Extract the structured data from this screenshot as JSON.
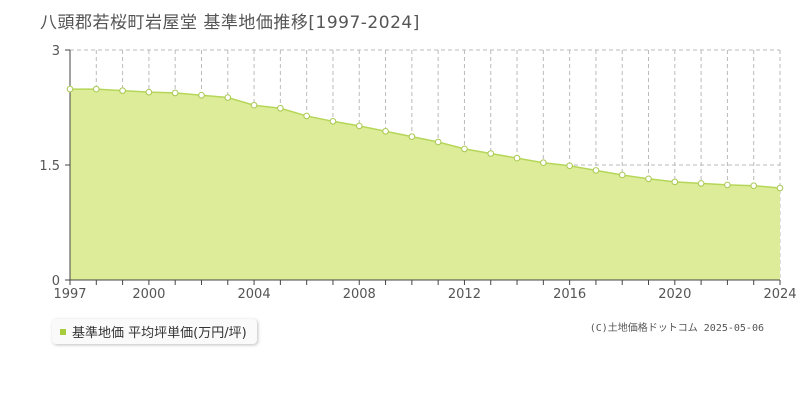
{
  "title": "八頭郡若桜町岩屋堂 基準地価推移[1997-2024]",
  "copyright": "(C)土地価格ドットコム 2025-05-06",
  "legend_label": "基準地価 平均坪単価(万円/坪)",
  "colors": {
    "fill": "#dcec98",
    "line": "#b6d65a",
    "marker_fill": "#ffffff",
    "marker_stroke": "#a8c850",
    "grid": "#bbbbbb",
    "axis": "#444444",
    "legend_marker": "#a8cd3c"
  },
  "chart_data": {
    "type": "area",
    "x": [
      1997,
      1998,
      1999,
      2000,
      2001,
      2002,
      2003,
      2004,
      2005,
      2006,
      2007,
      2008,
      2009,
      2010,
      2011,
      2012,
      2013,
      2014,
      2015,
      2016,
      2017,
      2018,
      2019,
      2020,
      2021,
      2022,
      2023,
      2024
    ],
    "series": [
      {
        "name": "基準地価 平均坪単価(万円/坪)",
        "values": [
          2.49,
          2.49,
          2.47,
          2.45,
          2.44,
          2.41,
          2.38,
          2.28,
          2.24,
          2.14,
          2.07,
          2.01,
          1.94,
          1.87,
          1.8,
          1.71,
          1.65,
          1.59,
          1.53,
          1.49,
          1.43,
          1.37,
          1.32,
          1.28,
          1.26,
          1.24,
          1.23,
          1.2
        ]
      }
    ],
    "xticks": [
      "1997",
      "2000",
      "2004",
      "2008",
      "2012",
      "2016",
      "2020",
      "2024"
    ],
    "yticks": [
      "0",
      "1.5",
      "3"
    ],
    "xlim": [
      1997,
      2024
    ],
    "ylim": [
      0,
      3
    ],
    "grid": true,
    "legend_position": "bottom-left"
  }
}
